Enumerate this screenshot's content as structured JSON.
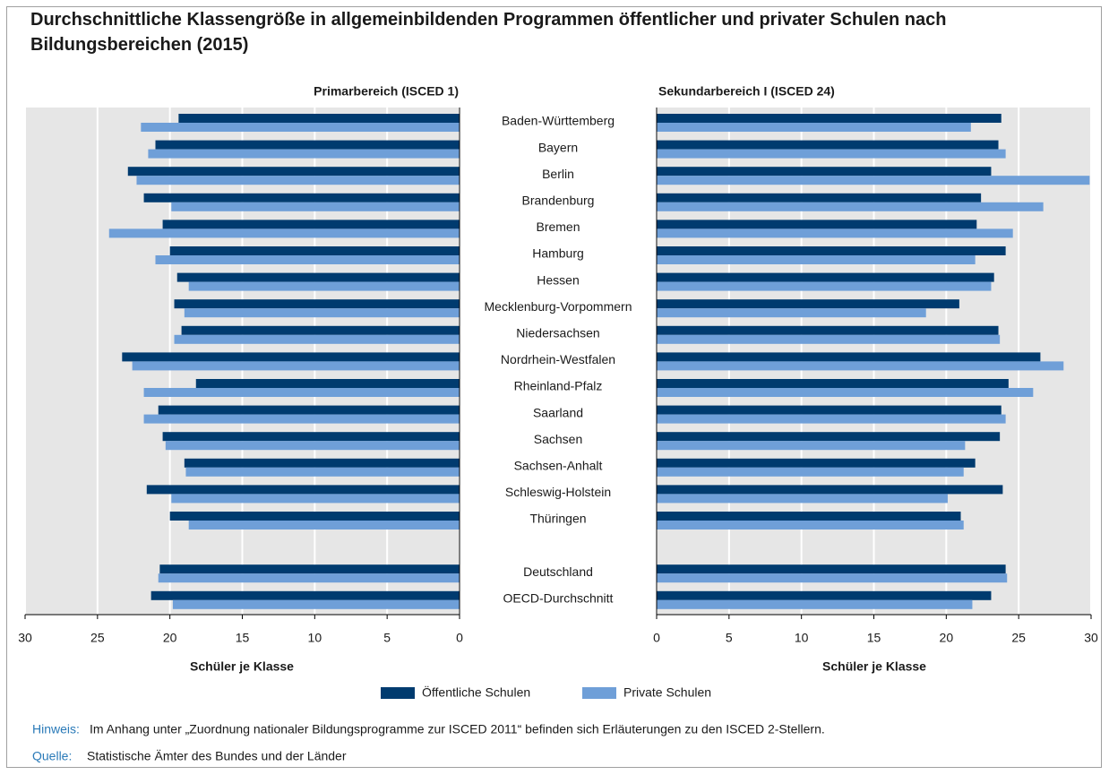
{
  "title": "Durchschnittliche Klassengröße in allgemeinbildenden Programmen öffentlicher und privater Schulen nach Bildungsbereichen (2015)",
  "chart_data": [
    {
      "type": "hbar",
      "title": "Primarbereich (ISCED 1)",
      "xlabel": "Schüler je Klasse",
      "categories": [
        "Baden-Württemberg",
        "Bayern",
        "Berlin",
        "Brandenburg",
        "Bremen",
        "Hamburg",
        "Hessen",
        "Mecklenburg-Vorpommern",
        "Niedersachsen",
        "Nordrhein-Westfalen",
        "Rheinland-Pfalz",
        "Saarland",
        "Sachsen",
        "Sachsen-Anhalt",
        "Schleswig-Holstein",
        "Thüringen",
        null,
        "Deutschland",
        "OECD-Durchschnitt"
      ],
      "xlim": [
        0,
        30
      ],
      "xticks": [
        0,
        5,
        10,
        15,
        20,
        25,
        30
      ],
      "x_reversed": true,
      "grid": true,
      "series": [
        {
          "name": "Öffentliche Schulen",
          "color": "#003b6f",
          "values": [
            19.4,
            21.0,
            22.9,
            21.8,
            20.5,
            20.0,
            19.5,
            19.7,
            19.2,
            23.3,
            18.2,
            20.8,
            20.5,
            19.0,
            21.6,
            20.0,
            null,
            20.7,
            21.3
          ]
        },
        {
          "name": "Private Schulen",
          "color": "#6f9fd8",
          "values": [
            22.0,
            21.5,
            22.3,
            19.9,
            24.2,
            21.0,
            18.7,
            19.0,
            19.7,
            22.6,
            21.8,
            21.8,
            20.3,
            18.9,
            19.9,
            18.7,
            null,
            20.8,
            19.8
          ]
        }
      ]
    },
    {
      "type": "hbar",
      "title": "Sekundarbereich I (ISCED 24)",
      "xlabel": "Schüler je Klasse",
      "xlim": [
        0,
        30
      ],
      "xticks": [
        0,
        5,
        10,
        15,
        20,
        25,
        30
      ],
      "x_reversed": false,
      "grid": true,
      "series": [
        {
          "color": "#003b6f",
          "values": [
            23.8,
            23.6,
            23.1,
            22.4,
            22.1,
            24.1,
            23.3,
            20.9,
            23.6,
            26.5,
            24.3,
            23.8,
            23.7,
            22.0,
            23.9,
            21.0,
            null,
            24.1,
            23.1
          ]
        },
        {
          "color": "#6f9fd8",
          "values": [
            21.7,
            24.1,
            29.9,
            26.7,
            24.6,
            22.0,
            23.1,
            18.6,
            23.7,
            28.1,
            26.0,
            24.1,
            21.3,
            21.2,
            20.1,
            21.2,
            null,
            24.2,
            21.8
          ]
        }
      ]
    }
  ],
  "notes": [
    {
      "label": "Hinweis:",
      "text": "Im Anhang unter „Zuordnung nationaler Bildungsprogramme zur ISCED 2011“ befinden sich Erläuterungen zu den ISCED 2-Stellern."
    },
    {
      "label": "Quelle:",
      "text": "Statistische Ämter des Bundes und der Länder"
    }
  ]
}
